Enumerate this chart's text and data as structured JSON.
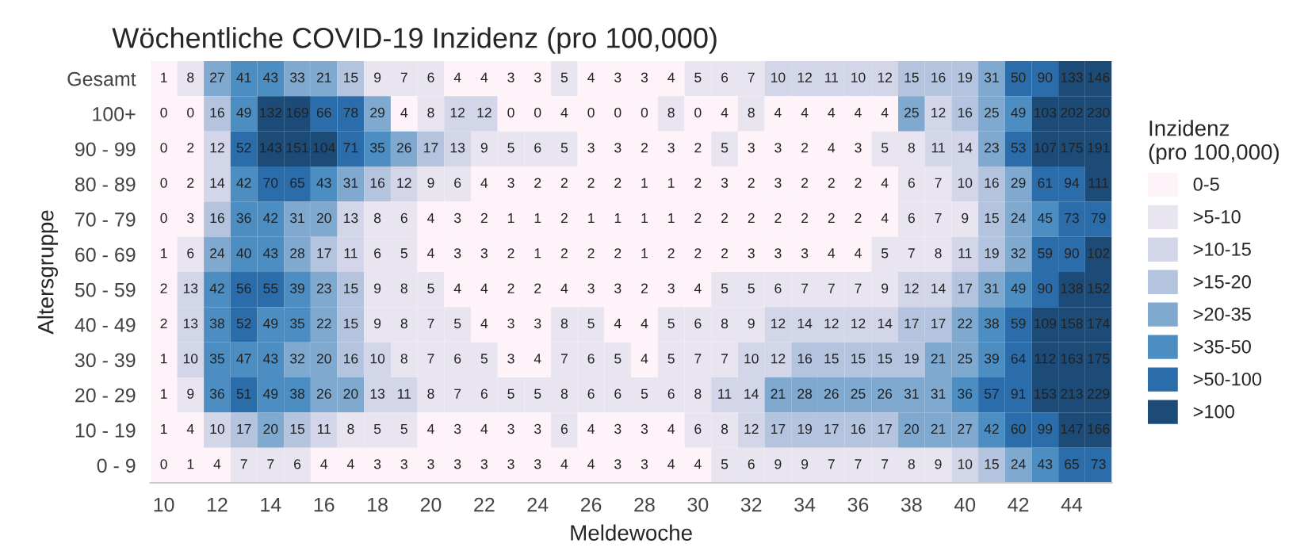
{
  "chart_data": {
    "type": "heatmap",
    "title": "Wöchentliche COVID-19 Inzidenz (pro 100,000)",
    "xlabel": "Meldewoche",
    "ylabel": "Altersgruppe",
    "legend_title": "Inzidenz\n(pro 100,000)",
    "data_labels": true,
    "x": [
      10,
      11,
      12,
      13,
      14,
      15,
      16,
      17,
      18,
      19,
      20,
      21,
      22,
      23,
      24,
      25,
      26,
      27,
      28,
      29,
      30,
      31,
      32,
      33,
      34,
      35,
      36,
      37,
      38,
      39,
      40,
      41,
      42,
      43,
      44,
      45
    ],
    "xlim": [
      9.5,
      45.5
    ],
    "xticks": [
      10,
      12,
      14,
      16,
      18,
      20,
      22,
      24,
      26,
      28,
      30,
      32,
      34,
      36,
      38,
      40,
      42,
      44
    ],
    "y_categories": [
      "Gesamt",
      "100+",
      "90 - 99",
      "80 - 89",
      "70 - 79",
      "60 - 69",
      "50 - 59",
      "40 - 49",
      "30 - 39",
      "20 - 29",
      "10 - 19",
      "0 - 9"
    ],
    "cells": [
      [
        1,
        8,
        27,
        41,
        43,
        33,
        21,
        15,
        9,
        7,
        6,
        4,
        4,
        3,
        3,
        5,
        4,
        3,
        3,
        4,
        5,
        6,
        7,
        10,
        12,
        11,
        10,
        12,
        15,
        16,
        19,
        31,
        50,
        90,
        133,
        146
      ],
      [
        0,
        0,
        16,
        49,
        132,
        169,
        66,
        78,
        29,
        4,
        8,
        12,
        12,
        0,
        0,
        4,
        0,
        0,
        0,
        8,
        0,
        4,
        8,
        4,
        4,
        4,
        4,
        4,
        25,
        12,
        16,
        25,
        49,
        103,
        202,
        230
      ],
      [
        0,
        2,
        12,
        52,
        143,
        151,
        104,
        71,
        35,
        26,
        17,
        13,
        9,
        5,
        6,
        5,
        3,
        3,
        2,
        3,
        2,
        5,
        3,
        3,
        2,
        4,
        3,
        5,
        8,
        11,
        14,
        23,
        53,
        107,
        175,
        191
      ],
      [
        0,
        2,
        14,
        42,
        70,
        65,
        43,
        31,
        16,
        12,
        9,
        6,
        4,
        3,
        2,
        2,
        2,
        2,
        1,
        1,
        2,
        3,
        2,
        3,
        2,
        2,
        2,
        4,
        6,
        7,
        10,
        16,
        29,
        61,
        94,
        111
      ],
      [
        0,
        3,
        16,
        36,
        42,
        31,
        20,
        13,
        8,
        6,
        4,
        3,
        2,
        1,
        1,
        2,
        1,
        1,
        1,
        1,
        2,
        2,
        2,
        2,
        2,
        2,
        2,
        4,
        6,
        7,
        9,
        15,
        24,
        45,
        73,
        79
      ],
      [
        1,
        6,
        24,
        40,
        43,
        28,
        17,
        11,
        6,
        5,
        4,
        3,
        3,
        2,
        1,
        2,
        2,
        2,
        1,
        2,
        2,
        2,
        3,
        3,
        3,
        4,
        4,
        5,
        7,
        8,
        11,
        19,
        32,
        59,
        90,
        102
      ],
      [
        2,
        13,
        42,
        56,
        55,
        39,
        23,
        15,
        9,
        8,
        5,
        4,
        4,
        2,
        2,
        4,
        3,
        3,
        2,
        3,
        4,
        5,
        5,
        6,
        7,
        7,
        7,
        9,
        12,
        14,
        17,
        31,
        49,
        90,
        138,
        152
      ],
      [
        2,
        13,
        38,
        52,
        49,
        35,
        22,
        15,
        9,
        8,
        7,
        5,
        4,
        3,
        3,
        8,
        5,
        4,
        4,
        5,
        6,
        8,
        9,
        12,
        14,
        12,
        12,
        14,
        17,
        17,
        22,
        38,
        59,
        109,
        158,
        174
      ],
      [
        1,
        10,
        35,
        47,
        43,
        32,
        20,
        16,
        10,
        8,
        7,
        6,
        5,
        3,
        4,
        7,
        6,
        5,
        4,
        5,
        7,
        7,
        10,
        12,
        16,
        15,
        15,
        15,
        19,
        21,
        25,
        39,
        64,
        112,
        163,
        175
      ],
      [
        1,
        9,
        36,
        51,
        49,
        38,
        26,
        20,
        13,
        11,
        8,
        7,
        6,
        5,
        5,
        8,
        6,
        6,
        5,
        6,
        8,
        11,
        14,
        21,
        28,
        26,
        25,
        26,
        31,
        31,
        36,
        57,
        91,
        153,
        213,
        229
      ],
      [
        1,
        4,
        10,
        17,
        20,
        15,
        11,
        8,
        5,
        5,
        4,
        3,
        4,
        3,
        3,
        6,
        4,
        3,
        3,
        4,
        6,
        8,
        12,
        17,
        19,
        17,
        16,
        17,
        20,
        21,
        27,
        42,
        60,
        99,
        147,
        166
      ],
      [
        0,
        1,
        4,
        7,
        7,
        6,
        4,
        4,
        3,
        3,
        3,
        3,
        3,
        3,
        3,
        4,
        4,
        3,
        3,
        4,
        4,
        5,
        6,
        9,
        9,
        7,
        7,
        7,
        8,
        9,
        10,
        15,
        24,
        43,
        65,
        73
      ]
    ],
    "colors": [
      "#fdf3f9",
      "#e9e5f0",
      "#d3d5e8",
      "#b4c4df",
      "#80a9d0",
      "#4d8ec2",
      "#2b6cab",
      "#1d4b78"
    ],
    "cticks": [
      {
        "value": null,
        "label": "0-5"
      },
      {
        "value": null,
        "label": ">5-10"
      },
      {
        "value": null,
        "label": ">10-15"
      },
      {
        "value": null,
        "label": ">15-20"
      },
      {
        "value": null,
        "label": ">20-35"
      },
      {
        "value": null,
        "label": ">35-50"
      },
      {
        "value": null,
        "label": ">50-100"
      },
      {
        "value": null,
        "label": ">100"
      }
    ]
  }
}
